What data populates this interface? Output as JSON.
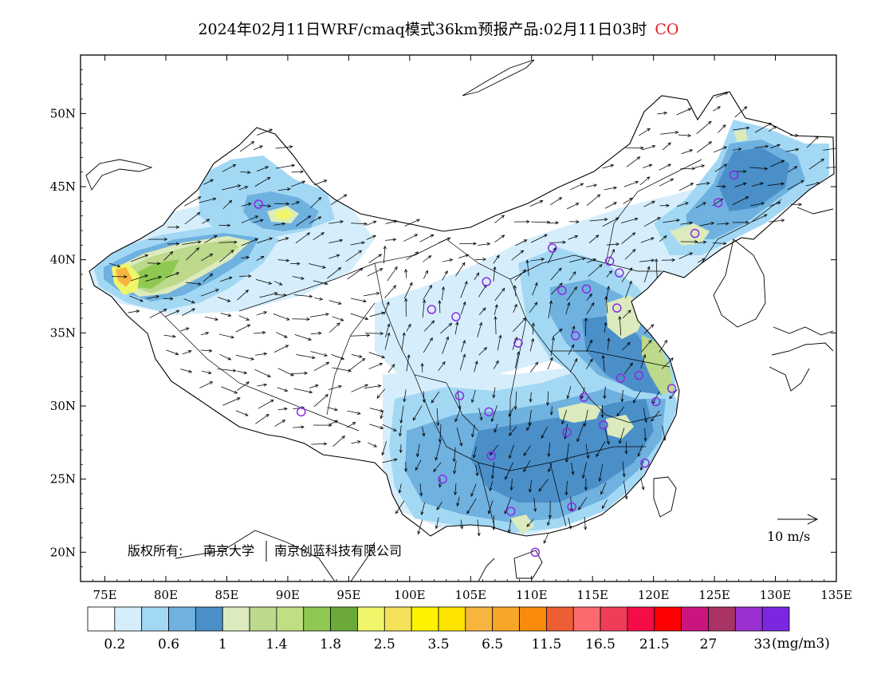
{
  "title": {
    "main": "2024年02月11日WRF/cmaq模式36km预报产品:02月11日03时",
    "pollutant": "CO",
    "pollutant_color": "#e8202a"
  },
  "axes": {
    "lon_labels": [
      "75E",
      "80E",
      "85E",
      "90E",
      "95E",
      "100E",
      "105E",
      "110E",
      "115E",
      "120E",
      "125E",
      "130E",
      "135E"
    ],
    "lon_values": [
      75,
      80,
      85,
      90,
      95,
      100,
      105,
      110,
      115,
      120,
      125,
      130,
      135
    ],
    "lat_labels": [
      "20N",
      "25N",
      "30N",
      "35N",
      "40N",
      "45N",
      "50N"
    ],
    "lat_values": [
      20,
      25,
      30,
      35,
      40,
      45,
      50
    ],
    "lon_range": [
      73,
      135
    ],
    "lat_range": [
      18,
      54
    ]
  },
  "copyright": {
    "prefix": "版权所有:",
    "org1": "南京大学",
    "org2": "南京创蓝科技有限公司"
  },
  "reference_vector": {
    "label": "10 m/s"
  },
  "colorbar": {
    "colors": [
      "#ffffff",
      "#d6eefb",
      "#a3d8f4",
      "#6fb1df",
      "#4a8fc8",
      "#dcebbd",
      "#bcd98c",
      "#c0df83",
      "#8fc952",
      "#6aa93a",
      "#f0f66a",
      "#f5e15a",
      "#fff200",
      "#fce300",
      "#f7b540",
      "#f7a628",
      "#f98b0c",
      "#ee5e34",
      "#fd6a6d",
      "#f03c58",
      "#f50d48",
      "#ff0000",
      "#cc1480",
      "#a93365",
      "#9b30d0",
      "#7b27e0"
    ],
    "labels": [
      "0.2",
      "0.6",
      "1",
      "1.4",
      "1.8",
      "2.5",
      "3.5",
      "6.5",
      "11.5",
      "16.5",
      "21.5",
      "27",
      "33"
    ],
    "unit": "(mg/m3)"
  },
  "map_colors": {
    "very_light": "#d6eefb",
    "light": "#a3d8f4",
    "medium": "#6fb1df",
    "dark": "#4a8fc8",
    "pale_green": "#dcebbd",
    "green": "#bcd98c",
    "bright_green": "#8fc952",
    "yellow": "#f0f66a",
    "orange": "#f7b540",
    "station": "#8a2be2"
  }
}
